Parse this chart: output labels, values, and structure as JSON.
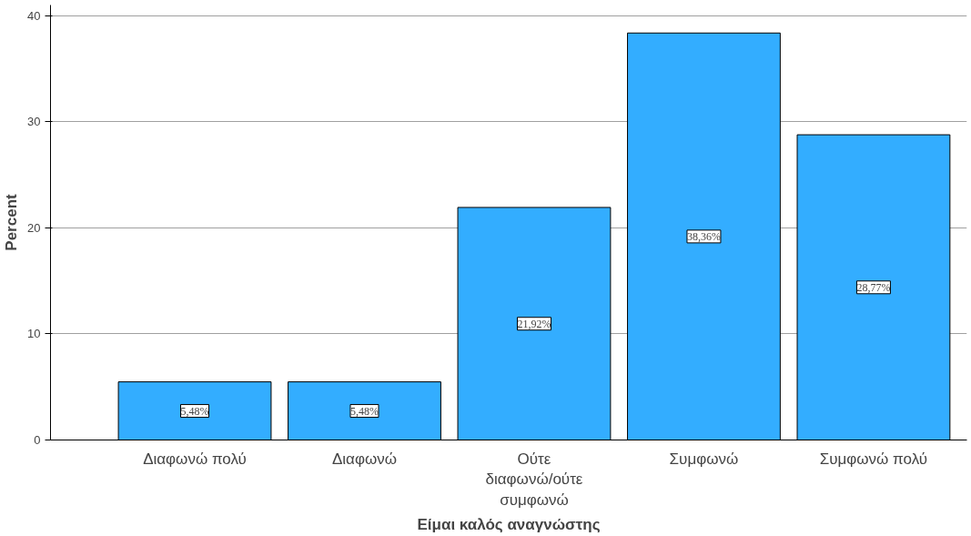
{
  "chart_data": {
    "type": "bar",
    "xlabel": "Είμαι καλός αναγνώστης",
    "ylabel": "Percent",
    "categories": [
      "Διαφωνώ πολύ",
      "Διαφωνώ",
      "Ούτε\nδιαφωνώ/ούτε\nσυμφωνώ",
      "Συμφωνώ",
      "Συμφωνώ πολύ"
    ],
    "values": [
      5.48,
      5.48,
      21.92,
      38.36,
      28.77
    ],
    "value_labels": [
      "5,48%",
      "5,48%",
      "21,92%",
      "38,36%",
      "28,77%"
    ],
    "color": "#33adff",
    "ylim": [
      0,
      41
    ],
    "yticks": [
      0,
      10,
      20,
      30,
      40
    ],
    "grid": "y"
  }
}
